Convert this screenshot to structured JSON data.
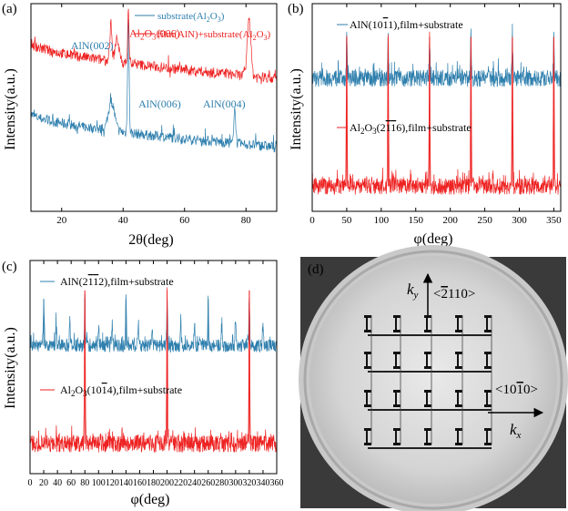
{
  "colors": {
    "blue": "#2e7fad",
    "red": "#ee2222",
    "axis": "#000000",
    "plate_text": "#000000"
  },
  "chart_data": [
    {
      "panel": "(a)",
      "type": "line",
      "xlabel": "2θ(deg)",
      "ylabel": "Intensity(a.u.)",
      "xlim": [
        10,
        90
      ],
      "ylim": [
        0,
        100
      ],
      "xticks": [
        20,
        40,
        60,
        80
      ],
      "xtick_labels": [
        "20",
        "40",
        "60",
        "80"
      ],
      "yticks": "none",
      "legend_position": "top-right",
      "series": [
        {
          "name": "substrate(Al₂O₃)",
          "color": "blue",
          "kind": "xrd-blue",
          "baseline_start": 47,
          "baseline_end": 31,
          "noise": 2.5,
          "peaks": [
            {
              "x": 36.2,
              "height": 14,
              "width": 1.4
            },
            {
              "x": 41.7,
              "height": 55,
              "width": 0.35
            },
            {
              "x": 76.4,
              "height": 18,
              "width": 0.4
            }
          ]
        },
        {
          "name": "film(AlN)+substrate(Al₂O₃)",
          "color": "red",
          "kind": "xrd-red",
          "baseline_start": 81,
          "baseline_end": 64,
          "noise": 2.5,
          "peaks": [
            {
              "x": 36.0,
              "height": 18,
              "width": 0.45
            },
            {
              "x": 38.0,
              "height": 11,
              "width": 0.9
            },
            {
              "x": 41.7,
              "height": 28,
              "width": 0.3
            },
            {
              "x": 81.0,
              "height": 28,
              "width": 0.8
            }
          ]
        }
      ],
      "annotations": [
        {
          "id": "aln002",
          "text": "AlN(002)",
          "color": "blue",
          "x": 23,
          "y": 78
        },
        {
          "id": "al2o3-006",
          "text": "Al₂O₃(006)",
          "color": "red",
          "x": 42,
          "y": 84
        },
        {
          "id": "aln006",
          "text": "AlN(006)",
          "color": "blue",
          "x": 45,
          "y": 50
        },
        {
          "id": "aln004",
          "text": "AlN(004)",
          "color": "blue",
          "x": 66,
          "y": 50
        }
      ]
    },
    {
      "panel": "(b)",
      "type": "line",
      "xlabel": "φ(deg)",
      "ylabel": "Intensity(a.u.)",
      "xlim": [
        0,
        360
      ],
      "ylim": [
        0,
        100
      ],
      "xticks": [
        0,
        50,
        100,
        150,
        200,
        250,
        300,
        350
      ],
      "xtick_labels": [
        "0",
        "50",
        "100",
        "150",
        "200",
        "250",
        "300",
        "350"
      ],
      "yticks": "none",
      "series": [
        {
          "name": "AlN(10-11),film+substrate",
          "color": "blue",
          "kind": "phi-blue",
          "baseline": 64,
          "noise": 4,
          "peak_height": 20,
          "peaks": [
            50,
            110,
            170,
            230,
            290,
            350
          ]
        },
        {
          "name": "Al₂O₃(2-1-16),film+substrate",
          "color": "red",
          "kind": "phi-red",
          "baseline": 12,
          "noise": 4,
          "peak_height": 72,
          "peaks": [
            50,
            110,
            170,
            230,
            290,
            350
          ]
        }
      ]
    },
    {
      "panel": "(c)",
      "type": "line",
      "xlabel": "φ(deg)",
      "ylabel": "Intensity(a.u.)",
      "xlim": [
        0,
        360
      ],
      "ylim": [
        0,
        100
      ],
      "xticks": [
        0,
        20,
        40,
        60,
        80,
        100,
        120,
        140,
        160,
        180,
        200,
        220,
        240,
        260,
        280,
        300,
        320,
        340,
        360
      ],
      "xtick_labels": [
        "0",
        "20",
        "40",
        "60",
        "80",
        "100",
        "120",
        "140",
        "160",
        "180",
        "200",
        "220",
        "240",
        "260",
        "280",
        "300",
        "320",
        "340",
        "360"
      ],
      "yticks": "none",
      "series": [
        {
          "name": "AlN(2-1-12),film+substrate",
          "color": "blue",
          "kind": "phi-blue",
          "baseline": 60,
          "noise": 3,
          "peak_height": 22,
          "peaks": [
            20,
            80,
            140,
            200,
            260,
            320
          ],
          "minor_peaks": [
            38,
            58,
            100,
            120,
            158,
            178,
            220,
            240,
            280,
            300,
            340
          ]
        },
        {
          "name": "Al₂O₃(10-14),film+substrate",
          "color": "red",
          "kind": "phi-red",
          "baseline": 14,
          "noise": 4,
          "peak_height": 72,
          "peaks": [
            80,
            200,
            320
          ]
        }
      ]
    }
  ],
  "panels": {
    "a": {
      "label": "(a)",
      "legend": {
        "blue": {
          "prefix": "substrate(Al",
          "sub": "2",
          "mid": "O",
          "sub2": "3",
          "suffix": ")"
        },
        "red": {
          "prefix": "film(AlN)+substrate(Al",
          "sub": "2",
          "mid": "O",
          "sub2": "3",
          "suffix": ")"
        }
      }
    },
    "b": {
      "label": "(b)",
      "label_blue": {
        "prefix": "AlN(10",
        "bar": "1",
        "end": "1),film+substrate"
      },
      "label_red": {
        "prefix": "Al",
        "sub": "2",
        "mid": "O",
        "sub2": "3",
        "open": "(2",
        "bar1": "1",
        "bar2": "1",
        "end": "6),film+substrate"
      }
    },
    "c": {
      "label": "(c)",
      "label_blue": {
        "prefix": "AlN(2",
        "bar1": "1",
        "bar2": "1",
        "end": "2),film+substrate"
      },
      "label_red": {
        "prefix": "Al",
        "sub": "2",
        "mid": "O",
        "sub2": "3",
        "open": "(10",
        "bar": "1",
        "end": "4),film+substrate"
      }
    },
    "d": {
      "label": "(d)",
      "ky": "k",
      "ky_sub": "y",
      "kx": "k",
      "kx_sub": "x",
      "dir_y": {
        "open": "<",
        "bar": "2",
        "rest": "110>"
      },
      "dir_x": {
        "open": "<10",
        "bar": "1",
        "rest": "0>"
      }
    }
  }
}
